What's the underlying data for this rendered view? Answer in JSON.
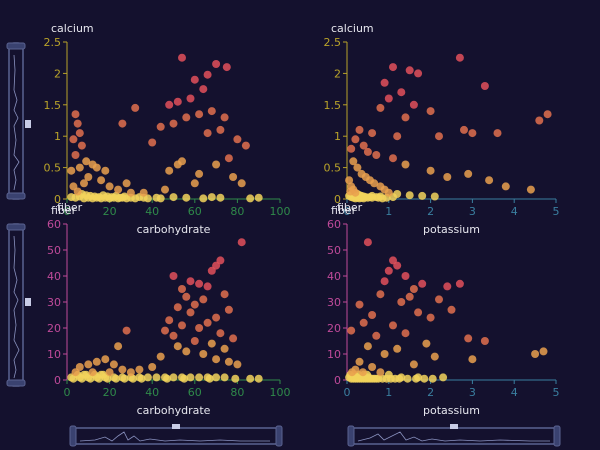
{
  "theme": {
    "background": "#14112e",
    "text": "#e6e6ee",
    "x_axis_color": "#2f8a4a",
    "y_axis_top_color": "#b9a32a",
    "y_axis_bottom_color": "#c04a9a",
    "x_axis_right_color": "#3a7fa0",
    "point_colors": [
      "#f2d45c",
      "#e9a04e",
      "#e0704e",
      "#e2505a"
    ],
    "scrollbar_color": "#5a6290"
  },
  "chart_data": [
    {
      "id": "tl",
      "type": "scatter",
      "x_field": "carbohydrate",
      "y_field": "calcium",
      "xlabel": "carbohydrate",
      "ylabel": "calcium",
      "corner_label": "fiber",
      "xlim": [
        0,
        100
      ],
      "ylim": [
        0,
        2.5
      ],
      "x_ticks": [
        "0",
        "20",
        "40",
        "60",
        "80",
        "100"
      ],
      "y_ticks": [
        "0",
        "0.5",
        "1",
        "1.5",
        "2",
        "2.5"
      ],
      "grid": false,
      "points": [
        [
          54,
          2.25
        ],
        [
          70,
          2.15
        ],
        [
          75,
          2.1
        ],
        [
          66,
          1.98
        ],
        [
          60,
          1.9
        ],
        [
          64,
          1.75
        ],
        [
          58,
          1.6
        ],
        [
          52,
          1.55
        ],
        [
          48,
          1.5
        ],
        [
          32,
          1.45
        ],
        [
          68,
          1.4
        ],
        [
          62,
          1.35
        ],
        [
          56,
          1.3
        ],
        [
          74,
          1.3
        ],
        [
          26,
          1.2
        ],
        [
          50,
          1.2
        ],
        [
          44,
          1.15
        ],
        [
          72,
          1.1
        ],
        [
          66,
          1.05
        ],
        [
          80,
          0.95
        ],
        [
          84,
          0.85
        ],
        [
          40,
          0.9
        ],
        [
          54,
          0.6
        ],
        [
          52,
          0.55
        ],
        [
          48,
          0.45
        ],
        [
          62,
          0.4
        ],
        [
          70,
          0.55
        ],
        [
          76,
          0.65
        ],
        [
          78,
          0.35
        ],
        [
          82,
          0.25
        ],
        [
          60,
          0.25
        ],
        [
          46,
          0.15
        ],
        [
          36,
          0.1
        ],
        [
          4,
          1.35
        ],
        [
          5,
          1.2
        ],
        [
          6,
          1.05
        ],
        [
          3,
          0.95
        ],
        [
          7,
          0.85
        ],
        [
          4,
          0.7
        ],
        [
          9,
          0.6
        ],
        [
          12,
          0.55
        ],
        [
          14,
          0.5
        ],
        [
          18,
          0.45
        ],
        [
          6,
          0.5
        ],
        [
          2,
          0.45
        ],
        [
          10,
          0.35
        ],
        [
          8,
          0.25
        ],
        [
          16,
          0.3
        ],
        [
          20,
          0.2
        ],
        [
          24,
          0.15
        ],
        [
          28,
          0.25
        ],
        [
          30,
          0.1
        ],
        [
          3,
          0.2
        ],
        [
          5,
          0.12
        ],
        [
          7,
          0.08
        ],
        [
          9,
          0.06
        ],
        [
          11,
          0.05
        ],
        [
          13,
          0.04
        ],
        [
          15,
          0.03
        ],
        [
          17,
          0.06
        ],
        [
          19,
          0.04
        ],
        [
          21,
          0.03
        ],
        [
          23,
          0.05
        ],
        [
          25,
          0.02
        ],
        [
          27,
          0.04
        ],
        [
          2,
          0.03
        ],
        [
          4,
          0.02
        ],
        [
          6,
          0.04
        ],
        [
          8,
          0.01
        ],
        [
          10,
          0.02
        ],
        [
          12,
          0.01
        ],
        [
          14,
          0.02
        ],
        [
          16,
          0.01
        ],
        [
          18,
          0.02
        ],
        [
          20,
          0.01
        ],
        [
          22,
          0.02
        ],
        [
          24,
          0.01
        ],
        [
          26,
          0.02
        ],
        [
          28,
          0.01
        ],
        [
          30,
          0.02
        ],
        [
          32,
          0.01
        ],
        [
          34,
          0.03
        ],
        [
          36,
          0.02
        ],
        [
          38,
          0.01
        ],
        [
          42,
          0.02
        ],
        [
          44,
          0.01
        ],
        [
          50,
          0.03
        ],
        [
          56,
          0.02
        ],
        [
          64,
          0.01
        ],
        [
          68,
          0.03
        ],
        [
          72,
          0.02
        ],
        [
          86,
          0.01
        ],
        [
          90,
          0.02
        ]
      ]
    },
    {
      "id": "tr",
      "type": "scatter",
      "x_field": "potassium",
      "y_field": "calcium",
      "xlabel": "potassium",
      "ylabel": "calcium",
      "corner_label": "fiber",
      "xlim": [
        0,
        5
      ],
      "ylim": [
        0,
        2.5
      ],
      "x_ticks": [
        "0",
        "1",
        "2",
        "3",
        "4",
        "5"
      ],
      "y_ticks": [
        "0",
        "0.5",
        "1",
        "1.5",
        "2",
        "2.5"
      ],
      "grid": false,
      "points": [
        [
          2.7,
          2.25
        ],
        [
          1.1,
          2.1
        ],
        [
          1.5,
          2.05
        ],
        [
          1.7,
          2.0
        ],
        [
          0.9,
          1.85
        ],
        [
          3.3,
          1.8
        ],
        [
          1.3,
          1.7
        ],
        [
          1.0,
          1.6
        ],
        [
          1.6,
          1.5
        ],
        [
          0.8,
          1.45
        ],
        [
          2.0,
          1.4
        ],
        [
          1.4,
          1.3
        ],
        [
          4.8,
          1.35
        ],
        [
          4.6,
          1.25
        ],
        [
          2.8,
          1.1
        ],
        [
          3.0,
          1.05
        ],
        [
          3.6,
          1.05
        ],
        [
          2.2,
          1.0
        ],
        [
          1.2,
          1.0
        ],
        [
          0.6,
          1.05
        ],
        [
          0.3,
          1.1
        ],
        [
          0.2,
          0.95
        ],
        [
          0.4,
          0.85
        ],
        [
          0.5,
          0.75
        ],
        [
          0.7,
          0.7
        ],
        [
          1.1,
          0.65
        ],
        [
          1.4,
          0.55
        ],
        [
          2.0,
          0.45
        ],
        [
          2.4,
          0.35
        ],
        [
          2.9,
          0.4
        ],
        [
          3.4,
          0.3
        ],
        [
          3.8,
          0.2
        ],
        [
          4.4,
          0.15
        ],
        [
          0.1,
          0.8
        ],
        [
          0.15,
          0.6
        ],
        [
          0.25,
          0.5
        ],
        [
          0.35,
          0.4
        ],
        [
          0.45,
          0.35
        ],
        [
          0.55,
          0.3
        ],
        [
          0.65,
          0.25
        ],
        [
          0.8,
          0.2
        ],
        [
          0.9,
          0.15
        ],
        [
          1.0,
          0.1
        ],
        [
          1.2,
          0.08
        ],
        [
          1.5,
          0.06
        ],
        [
          1.8,
          0.05
        ],
        [
          2.1,
          0.04
        ],
        [
          0.05,
          0.3
        ],
        [
          0.1,
          0.2
        ],
        [
          0.15,
          0.15
        ],
        [
          0.2,
          0.1
        ],
        [
          0.25,
          0.08
        ],
        [
          0.3,
          0.06
        ],
        [
          0.35,
          0.05
        ],
        [
          0.4,
          0.04
        ],
        [
          0.45,
          0.03
        ],
        [
          0.5,
          0.02
        ],
        [
          0.55,
          0.03
        ],
        [
          0.6,
          0.02
        ],
        [
          0.7,
          0.03
        ],
        [
          0.75,
          0.02
        ],
        [
          0.85,
          0.01
        ],
        [
          0.95,
          0.02
        ],
        [
          0.05,
          0.05
        ],
        [
          0.1,
          0.03
        ],
        [
          0.15,
          0.02
        ],
        [
          0.2,
          0.01
        ],
        [
          0.25,
          0.02
        ],
        [
          0.3,
          0.01
        ],
        [
          0.35,
          0.02
        ],
        [
          0.4,
          0.01
        ],
        [
          0.6,
          0.05
        ],
        [
          0.8,
          0.04
        ],
        [
          1.1,
          0.03
        ],
        [
          0.08,
          0.12
        ],
        [
          0.12,
          0.08
        ]
      ]
    },
    {
      "id": "bl",
      "type": "scatter",
      "x_field": "carbohydrate",
      "y_field": "fiber",
      "xlabel": "carbohydrate",
      "ylabel": "fiber",
      "corner_label": "",
      "xlim": [
        0,
        100
      ],
      "ylim": [
        0,
        60
      ],
      "x_ticks": [
        "0",
        "20",
        "40",
        "60",
        "80",
        "100"
      ],
      "y_ticks": [
        "0",
        "10",
        "20",
        "30",
        "40",
        "50",
        "60"
      ],
      "grid": false,
      "points": [
        [
          82,
          53
        ],
        [
          72,
          46
        ],
        [
          70,
          44
        ],
        [
          68,
          42
        ],
        [
          50,
          40
        ],
        [
          58,
          38
        ],
        [
          62,
          37
        ],
        [
          66,
          36
        ],
        [
          54,
          35
        ],
        [
          74,
          33
        ],
        [
          56,
          32
        ],
        [
          64,
          31
        ],
        [
          60,
          29
        ],
        [
          52,
          28
        ],
        [
          76,
          27
        ],
        [
          58,
          26
        ],
        [
          70,
          24
        ],
        [
          48,
          23
        ],
        [
          66,
          22
        ],
        [
          54,
          21
        ],
        [
          62,
          20
        ],
        [
          46,
          19
        ],
        [
          72,
          18
        ],
        [
          50,
          17
        ],
        [
          78,
          16
        ],
        [
          60,
          15
        ],
        [
          68,
          14
        ],
        [
          52,
          13
        ],
        [
          74,
          12
        ],
        [
          56,
          11
        ],
        [
          64,
          10
        ],
        [
          44,
          9
        ],
        [
          70,
          8
        ],
        [
          76,
          7
        ],
        [
          80,
          6
        ],
        [
          40,
          5
        ],
        [
          34,
          4
        ],
        [
          28,
          19
        ],
        [
          24,
          13
        ],
        [
          18,
          8
        ],
        [
          14,
          7
        ],
        [
          10,
          6
        ],
        [
          6,
          5
        ],
        [
          22,
          6
        ],
        [
          26,
          4
        ],
        [
          30,
          3
        ],
        [
          4,
          3
        ],
        [
          8,
          2
        ],
        [
          12,
          3
        ],
        [
          16,
          2
        ],
        [
          20,
          3
        ],
        [
          2,
          1
        ],
        [
          6,
          1
        ],
        [
          10,
          1
        ],
        [
          14,
          1
        ],
        [
          18,
          1
        ],
        [
          22,
          1
        ],
        [
          26,
          1
        ],
        [
          30,
          1
        ],
        [
          34,
          1
        ],
        [
          38,
          1
        ],
        [
          42,
          1
        ],
        [
          46,
          1
        ],
        [
          50,
          1
        ],
        [
          54,
          1
        ],
        [
          58,
          1
        ],
        [
          62,
          1
        ],
        [
          66,
          1
        ],
        [
          70,
          1
        ],
        [
          74,
          1
        ],
        [
          3,
          0.5
        ],
        [
          7,
          0.5
        ],
        [
          11,
          0.5
        ],
        [
          15,
          0.5
        ],
        [
          19,
          0.5
        ],
        [
          23,
          0.5
        ],
        [
          27,
          0.5
        ],
        [
          31,
          0.5
        ],
        [
          35,
          0.5
        ],
        [
          47,
          0.5
        ],
        [
          55,
          0.5
        ],
        [
          67,
          0.5
        ],
        [
          79,
          0.5
        ],
        [
          86,
          0.5
        ],
        [
          90,
          0.5
        ],
        [
          5,
          2
        ],
        [
          9,
          2
        ],
        [
          13,
          2
        ],
        [
          17,
          2
        ]
      ]
    },
    {
      "id": "br",
      "type": "scatter",
      "x_field": "potassium",
      "y_field": "fiber",
      "xlabel": "potassium",
      "ylabel": "fiber",
      "corner_label": "",
      "xlim": [
        0,
        5
      ],
      "ylim": [
        0,
        60
      ],
      "x_ticks": [
        "0",
        "1",
        "2",
        "3",
        "4",
        "5"
      ],
      "y_ticks": [
        "0",
        "10",
        "20",
        "30",
        "40",
        "50",
        "60"
      ],
      "grid": false,
      "points": [
        [
          0.5,
          53
        ],
        [
          1.1,
          46
        ],
        [
          1.2,
          44
        ],
        [
          1.0,
          42
        ],
        [
          1.4,
          40
        ],
        [
          0.9,
          38
        ],
        [
          1.8,
          37
        ],
        [
          1.6,
          35
        ],
        [
          2.4,
          36
        ],
        [
          2.7,
          37
        ],
        [
          0.8,
          33
        ],
        [
          1.5,
          32
        ],
        [
          2.2,
          31
        ],
        [
          1.3,
          30
        ],
        [
          0.3,
          29
        ],
        [
          2.5,
          27
        ],
        [
          1.7,
          26
        ],
        [
          0.6,
          25
        ],
        [
          2.0,
          24
        ],
        [
          0.4,
          22
        ],
        [
          1.1,
          21
        ],
        [
          0.1,
          19
        ],
        [
          1.4,
          18
        ],
        [
          0.7,
          17
        ],
        [
          2.9,
          16
        ],
        [
          3.3,
          15
        ],
        [
          1.9,
          14
        ],
        [
          0.5,
          13
        ],
        [
          1.2,
          12
        ],
        [
          4.7,
          11
        ],
        [
          4.5,
          10
        ],
        [
          0.9,
          10
        ],
        [
          2.1,
          9
        ],
        [
          3.0,
          8
        ],
        [
          0.3,
          7
        ],
        [
          1.6,
          6
        ],
        [
          0.6,
          5
        ],
        [
          0.2,
          4
        ],
        [
          0.8,
          3
        ],
        [
          0.4,
          2
        ],
        [
          1.0,
          2
        ],
        [
          1.3,
          1
        ],
        [
          1.7,
          1
        ],
        [
          2.3,
          1
        ],
        [
          0.05,
          1
        ],
        [
          0.1,
          0.5
        ],
        [
          0.15,
          0.5
        ],
        [
          0.2,
          0.5
        ],
        [
          0.25,
          0.5
        ],
        [
          0.3,
          0.5
        ],
        [
          0.35,
          0.5
        ],
        [
          0.4,
          0.5
        ],
        [
          0.45,
          0.5
        ],
        [
          0.5,
          0.5
        ],
        [
          0.55,
          0.5
        ],
        [
          0.6,
          0.5
        ],
        [
          0.65,
          0.5
        ],
        [
          0.7,
          0.5
        ],
        [
          0.75,
          0.5
        ],
        [
          0.85,
          0.5
        ],
        [
          0.95,
          0.5
        ],
        [
          1.05,
          0.5
        ],
        [
          1.15,
          0.5
        ],
        [
          1.25,
          0.5
        ],
        [
          1.45,
          0.5
        ],
        [
          1.65,
          0.5
        ],
        [
          1.85,
          0.5
        ],
        [
          2.05,
          0.5
        ],
        [
          0.08,
          2
        ],
        [
          0.12,
          3
        ],
        [
          0.18,
          2
        ],
        [
          0.22,
          1
        ],
        [
          0.28,
          2
        ],
        [
          0.32,
          1
        ],
        [
          0.38,
          3
        ],
        [
          0.42,
          1
        ],
        [
          0.48,
          2
        ],
        [
          0.52,
          1
        ]
      ]
    }
  ]
}
